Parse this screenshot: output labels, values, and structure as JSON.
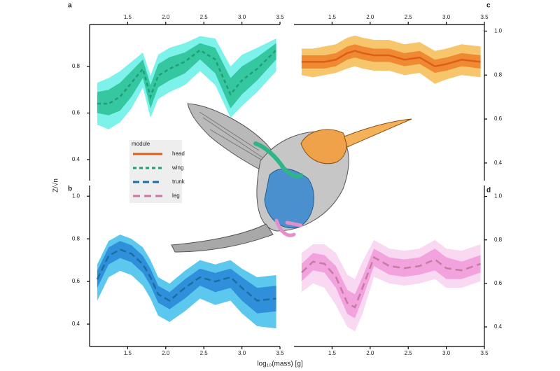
{
  "figure": {
    "xlabel": "log₁₀(mass) [g]",
    "ylabel": "Z/√n",
    "legend_title": "module"
  },
  "chart_data": [
    {
      "type": "line",
      "label": "a",
      "xaxis": "top",
      "yaxis": "left",
      "x": [
        1.1,
        1.25,
        1.4,
        1.55,
        1.7,
        1.8,
        1.9,
        2.05,
        2.25,
        2.45,
        2.65,
        2.85,
        3.0,
        3.2,
        3.45
      ],
      "xlim": [
        1.0,
        3.5
      ],
      "xticks": [
        1.5,
        {
          "value": 2,
          "label": "2.0"
        },
        2.5,
        {
          "value": 3,
          "label": "3.0"
        },
        3.5
      ],
      "ylim": [
        0.31,
        0.98
      ],
      "yticks": [
        0.4,
        0.6,
        0.8
      ],
      "series": [
        {
          "name": "wing",
          "color": "#1f9e77",
          "dash": "5,4",
          "inner_color": "#35c7a0",
          "outer_color": "#7cf2ea",
          "values": [
            0.64,
            0.64,
            0.67,
            0.73,
            0.79,
            0.67,
            0.76,
            0.79,
            0.82,
            0.87,
            0.83,
            0.68,
            0.74,
            0.79,
            0.87
          ],
          "inner_low": [
            0.6,
            0.59,
            0.61,
            0.67,
            0.75,
            0.62,
            0.71,
            0.74,
            0.77,
            0.83,
            0.77,
            0.62,
            0.68,
            0.74,
            0.83
          ],
          "inner_high": [
            0.69,
            0.7,
            0.73,
            0.78,
            0.83,
            0.72,
            0.81,
            0.84,
            0.86,
            0.9,
            0.88,
            0.75,
            0.8,
            0.84,
            0.9
          ],
          "outer_low": [
            0.55,
            0.53,
            0.56,
            0.62,
            0.71,
            0.58,
            0.66,
            0.69,
            0.72,
            0.78,
            0.72,
            0.58,
            0.63,
            0.69,
            0.78
          ],
          "outer_high": [
            0.73,
            0.75,
            0.78,
            0.82,
            0.86,
            0.76,
            0.85,
            0.88,
            0.9,
            0.93,
            0.92,
            0.8,
            0.85,
            0.88,
            0.92
          ]
        }
      ]
    },
    {
      "type": "line",
      "label": "b",
      "xaxis": "bottom",
      "yaxis": "left",
      "x": [
        1.1,
        1.25,
        1.4,
        1.55,
        1.7,
        1.8,
        1.9,
        2.05,
        2.25,
        2.45,
        2.65,
        2.85,
        3.0,
        3.2,
        3.45
      ],
      "xlim": [
        1.0,
        3.5
      ],
      "xticks": [
        1.5,
        {
          "value": 2,
          "label": "2.0"
        },
        2.5,
        {
          "value": 3,
          "label": "3.0"
        },
        3.5
      ],
      "ylim": [
        0.295,
        1.05
      ],
      "yticks": [
        0.4,
        0.6,
        0.8,
        {
          "value": 1,
          "label": "1.0"
        }
      ],
      "series": [
        {
          "name": "trunk",
          "color": "#1b6f9e",
          "dash": "9,5",
          "inner_color": "#2f8fdb",
          "outer_color": "#5cc8ee",
          "values": [
            0.61,
            0.72,
            0.75,
            0.73,
            0.68,
            0.62,
            0.54,
            0.51,
            0.57,
            0.62,
            0.6,
            0.62,
            0.57,
            0.51,
            0.52
          ],
          "inner_low": [
            0.57,
            0.68,
            0.71,
            0.69,
            0.64,
            0.58,
            0.5,
            0.47,
            0.52,
            0.58,
            0.55,
            0.57,
            0.51,
            0.45,
            0.46
          ],
          "inner_high": [
            0.65,
            0.76,
            0.79,
            0.77,
            0.72,
            0.66,
            0.58,
            0.55,
            0.61,
            0.66,
            0.64,
            0.66,
            0.62,
            0.57,
            0.58
          ],
          "outer_low": [
            0.51,
            0.62,
            0.65,
            0.63,
            0.58,
            0.52,
            0.44,
            0.41,
            0.46,
            0.52,
            0.49,
            0.51,
            0.45,
            0.39,
            0.38
          ],
          "outer_high": [
            0.68,
            0.79,
            0.82,
            0.8,
            0.76,
            0.7,
            0.62,
            0.59,
            0.65,
            0.7,
            0.68,
            0.7,
            0.66,
            0.62,
            0.63
          ]
        }
      ]
    },
    {
      "type": "line",
      "label": "c",
      "xaxis": "top",
      "yaxis": "right",
      "x": [
        1.1,
        1.25,
        1.4,
        1.55,
        1.7,
        1.8,
        1.9,
        2.05,
        2.25,
        2.45,
        2.65,
        2.85,
        3.0,
        3.2,
        3.45
      ],
      "xlim": [
        1.0,
        3.5
      ],
      "xticks": [
        1.5,
        {
          "value": 2,
          "label": "2.0"
        },
        2.5,
        {
          "value": 3,
          "label": "3.0"
        },
        3.5
      ],
      "ylim": [
        0.32,
        1.03
      ],
      "yticks": [
        0.4,
        0.6,
        0.8,
        {
          "value": 1,
          "label": "1.0"
        }
      ],
      "series": [
        {
          "name": "head",
          "color": "#dc5e18",
          "dash": "none",
          "inner_color": "#f08a32",
          "outer_color": "#f6c56c",
          "values": [
            0.86,
            0.86,
            0.86,
            0.87,
            0.9,
            0.91,
            0.9,
            0.89,
            0.89,
            0.87,
            0.88,
            0.84,
            0.85,
            0.87,
            0.86
          ],
          "inner_low": [
            0.83,
            0.83,
            0.83,
            0.84,
            0.87,
            0.88,
            0.87,
            0.86,
            0.86,
            0.84,
            0.85,
            0.81,
            0.82,
            0.84,
            0.83
          ],
          "inner_high": [
            0.89,
            0.89,
            0.89,
            0.9,
            0.93,
            0.94,
            0.93,
            0.92,
            0.92,
            0.9,
            0.91,
            0.87,
            0.88,
            0.9,
            0.89
          ],
          "outer_low": [
            0.8,
            0.79,
            0.8,
            0.81,
            0.83,
            0.84,
            0.83,
            0.82,
            0.82,
            0.8,
            0.81,
            0.76,
            0.78,
            0.8,
            0.79
          ],
          "outer_high": [
            0.92,
            0.92,
            0.93,
            0.94,
            0.97,
            0.98,
            0.97,
            0.96,
            0.96,
            0.94,
            0.95,
            0.91,
            0.92,
            0.94,
            0.93
          ]
        }
      ]
    },
    {
      "type": "line",
      "label": "d",
      "xaxis": "bottom",
      "yaxis": "right",
      "x": [
        1.1,
        1.25,
        1.4,
        1.55,
        1.7,
        1.8,
        1.9,
        2.05,
        2.25,
        2.45,
        2.65,
        2.85,
        3.0,
        3.2,
        3.45
      ],
      "xlim": [
        1.0,
        3.5
      ],
      "xticks": [
        1.5,
        {
          "value": 2,
          "label": "2.0"
        },
        2.5,
        {
          "value": 3,
          "label": "3.0"
        },
        3.5
      ],
      "ylim": [
        0.31,
        1.05
      ],
      "yticks": [
        0.4,
        0.6,
        0.8,
        {
          "value": 1,
          "label": "1.0"
        }
      ],
      "series": [
        {
          "name": "leg",
          "color": "#c97aa2",
          "dash": "10,6",
          "inner_color": "#f2a2dd",
          "outer_color": "#f9d8f1",
          "values": [
            0.65,
            0.7,
            0.69,
            0.63,
            0.51,
            0.49,
            0.58,
            0.72,
            0.68,
            0.67,
            0.68,
            0.71,
            0.67,
            0.66,
            0.69
          ],
          "inner_low": [
            0.61,
            0.66,
            0.65,
            0.58,
            0.46,
            0.44,
            0.53,
            0.68,
            0.64,
            0.63,
            0.64,
            0.66,
            0.62,
            0.62,
            0.65
          ],
          "inner_high": [
            0.69,
            0.74,
            0.73,
            0.68,
            0.57,
            0.55,
            0.63,
            0.76,
            0.72,
            0.71,
            0.72,
            0.76,
            0.72,
            0.7,
            0.73
          ],
          "outer_low": [
            0.56,
            0.6,
            0.58,
            0.5,
            0.4,
            0.38,
            0.46,
            0.63,
            0.6,
            0.59,
            0.6,
            0.62,
            0.58,
            0.58,
            0.61
          ],
          "outer_high": [
            0.74,
            0.78,
            0.78,
            0.74,
            0.64,
            0.62,
            0.7,
            0.8,
            0.76,
            0.75,
            0.76,
            0.8,
            0.76,
            0.75,
            0.78
          ]
        }
      ]
    }
  ]
}
